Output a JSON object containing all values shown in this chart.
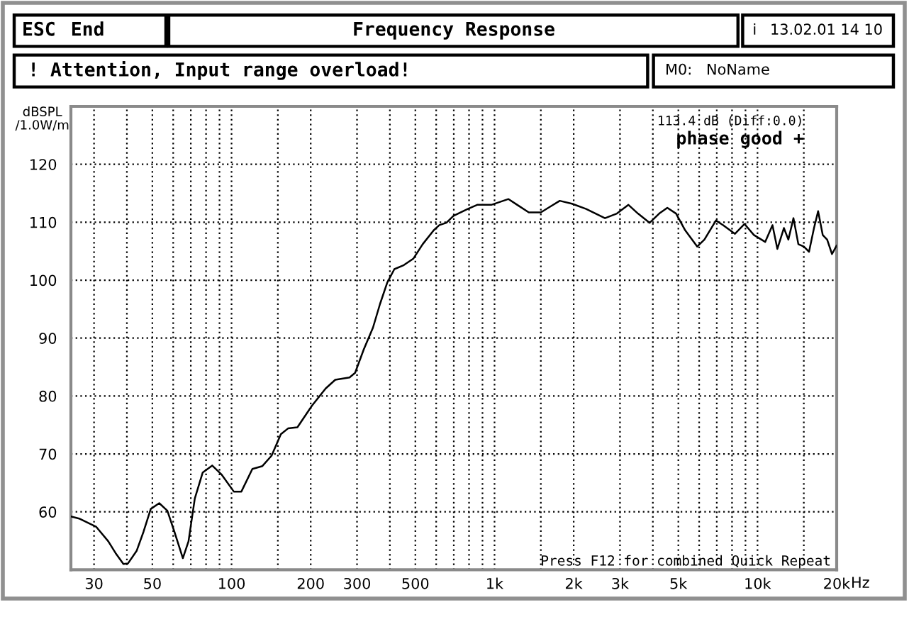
{
  "chart_data": {
    "type": "line",
    "title": "Frequency Response",
    "ylabel": "dBSPL\n/1.0W/m",
    "xlabel": "Hz",
    "x": [
      24.5,
      26.5,
      30.6,
      34.0,
      36.2,
      38.8,
      40.4,
      43.6,
      46.3,
      49.3,
      53.1,
      57.0,
      60.6,
      65.3,
      68.6,
      72.5,
      77.7,
      84.4,
      91.8,
      102,
      109,
      120,
      131,
      142,
      154,
      164,
      178,
      202,
      228,
      248,
      281,
      295,
      318,
      345,
      367,
      391,
      416,
      452,
      491,
      533,
      587,
      617,
      656,
      698,
      791,
      859,
      972,
      1130,
      1220,
      1350,
      1500,
      1630,
      1770,
      1970,
      2230,
      2630,
      2920,
      3230,
      3510,
      3890,
      4230,
      4540,
      4900,
      5310,
      5900,
      6280,
      6950,
      7400,
      8210,
      8920,
      9690,
      10700,
      11400,
      11900,
      12600,
      13100,
      13700,
      14300,
      15000,
      15700,
      16400,
      17000,
      17700,
      18400,
      19200,
      20000
    ],
    "series": [
      {
        "color": "#000000",
        "values": [
          59.2,
          58.8,
          57.4,
          54.9,
          52.9,
          51.0,
          51.1,
          53.3,
          56.6,
          60.5,
          61.5,
          60.2,
          56.6,
          52.0,
          54.9,
          62.3,
          66.8,
          68.0,
          66.4,
          63.5,
          63.5,
          67.4,
          67.9,
          69.7,
          73.4,
          74.4,
          74.6,
          78.3,
          81.3,
          82.8,
          83.2,
          84.0,
          88.0,
          91.8,
          95.9,
          99.6,
          101.9,
          102.6,
          103.7,
          106.2,
          108.6,
          109.5,
          109.9,
          111.1,
          112.3,
          113.0,
          113.0,
          114.0,
          113.0,
          111.7,
          111.7,
          112.7,
          113.7,
          113.2,
          112.3,
          110.7,
          111.5,
          113.0,
          111.5,
          109.9,
          111.5,
          112.5,
          111.5,
          108.6,
          105.8,
          107.0,
          110.3,
          109.5,
          108.0,
          109.7,
          107.8,
          106.6,
          109.5,
          105.4,
          109.0,
          107.0,
          110.7,
          106.2,
          105.8,
          104.9,
          109.0,
          111.9,
          107.8,
          107.0,
          104.5,
          106.0
        ]
      }
    ],
    "xlim": [
      24.5,
      20000
    ],
    "ylim": [
      50,
      130
    ],
    "log": "x",
    "grid": true,
    "xticks": [
      30,
      {
        "value": 40,
        "label": null
      },
      50,
      {
        "value": 60,
        "label": null
      },
      {
        "value": 70,
        "label": null
      },
      {
        "value": 80,
        "label": null
      },
      {
        "value": 90,
        "label": null
      },
      100,
      {
        "value": 150,
        "label": null
      },
      200,
      300,
      {
        "value": 400,
        "label": null
      },
      500,
      {
        "value": 600,
        "label": null
      },
      {
        "value": 700,
        "label": null
      },
      {
        "value": 800,
        "label": null
      },
      {
        "value": 900,
        "label": null
      },
      {
        "value": 1000,
        "label": "1k"
      },
      {
        "value": 1500,
        "label": null
      },
      {
        "value": 2000,
        "label": "2k"
      },
      {
        "value": 3000,
        "label": "3k"
      },
      {
        "value": 4000,
        "label": null
      },
      {
        "value": 5000,
        "label": "5k"
      },
      {
        "value": 6000,
        "label": null
      },
      {
        "value": 7000,
        "label": null
      },
      {
        "value": 8000,
        "label": null
      },
      {
        "value": 9000,
        "label": null
      },
      {
        "value": 10000,
        "label": "10k"
      },
      {
        "value": 15000,
        "label": null
      },
      {
        "value": 20000,
        "label": "20k"
      }
    ],
    "yticks": [
      60,
      70,
      80,
      90,
      100,
      110,
      120
    ],
    "annotations": [
      "ESC",
      "End",
      "i",
      "13.02.01 14 10",
      "! Attention, Input range overload!",
      "M0:",
      "NoName",
      "113.4 dB (Diff:0.0)",
      "phase good +",
      "Press F12 for combined Quick Repeat"
    ]
  }
}
